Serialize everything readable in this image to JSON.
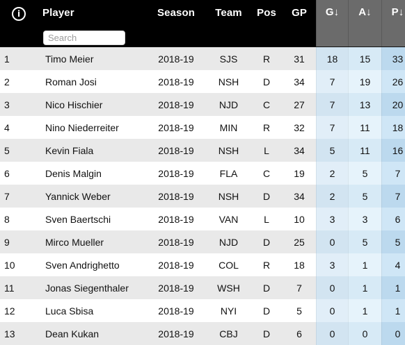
{
  "header": {
    "info_icon": "info-icon",
    "info_glyph": "i",
    "player": "Player",
    "search_placeholder": "Search",
    "season": "Season",
    "team": "Team",
    "pos": "Pos",
    "gp": "GP",
    "g": "G↓",
    "a": "A↓",
    "p": "P↓"
  },
  "rows": [
    {
      "rank": "1",
      "player": "Timo Meier",
      "season": "2018-19",
      "team": "SJS",
      "pos": "R",
      "gp": "31",
      "g": "18",
      "a": "15",
      "p": "33"
    },
    {
      "rank": "2",
      "player": "Roman Josi",
      "season": "2018-19",
      "team": "NSH",
      "pos": "D",
      "gp": "34",
      "g": "7",
      "a": "19",
      "p": "26"
    },
    {
      "rank": "3",
      "player": "Nico Hischier",
      "season": "2018-19",
      "team": "NJD",
      "pos": "C",
      "gp": "27",
      "g": "7",
      "a": "13",
      "p": "20"
    },
    {
      "rank": "4",
      "player": "Nino Niederreiter",
      "season": "2018-19",
      "team": "MIN",
      "pos": "R",
      "gp": "32",
      "g": "7",
      "a": "11",
      "p": "18"
    },
    {
      "rank": "5",
      "player": "Kevin Fiala",
      "season": "2018-19",
      "team": "NSH",
      "pos": "L",
      "gp": "34",
      "g": "5",
      "a": "11",
      "p": "16"
    },
    {
      "rank": "6",
      "player": "Denis Malgin",
      "season": "2018-19",
      "team": "FLA",
      "pos": "C",
      "gp": "19",
      "g": "2",
      "a": "5",
      "p": "7"
    },
    {
      "rank": "7",
      "player": "Yannick Weber",
      "season": "2018-19",
      "team": "NSH",
      "pos": "D",
      "gp": "34",
      "g": "2",
      "a": "5",
      "p": "7"
    },
    {
      "rank": "8",
      "player": "Sven Baertschi",
      "season": "2018-19",
      "team": "VAN",
      "pos": "L",
      "gp": "10",
      "g": "3",
      "a": "3",
      "p": "6"
    },
    {
      "rank": "9",
      "player": "Mirco Mueller",
      "season": "2018-19",
      "team": "NJD",
      "pos": "D",
      "gp": "25",
      "g": "0",
      "a": "5",
      "p": "5"
    },
    {
      "rank": "10",
      "player": "Sven Andrighetto",
      "season": "2018-19",
      "team": "COL",
      "pos": "R",
      "gp": "18",
      "g": "3",
      "a": "1",
      "p": "4"
    },
    {
      "rank": "11",
      "player": "Jonas Siegenthaler",
      "season": "2018-19",
      "team": "WSH",
      "pos": "D",
      "gp": "7",
      "g": "0",
      "a": "1",
      "p": "1"
    },
    {
      "rank": "12",
      "player": "Luca Sbisa",
      "season": "2018-19",
      "team": "NYI",
      "pos": "D",
      "gp": "5",
      "g": "0",
      "a": "1",
      "p": "1"
    },
    {
      "rank": "13",
      "player": "Dean Kukan",
      "season": "2018-19",
      "team": "CBJ",
      "pos": "D",
      "gp": "6",
      "g": "0",
      "a": "0",
      "p": "0"
    }
  ],
  "colors": {
    "header_bg": "#000000",
    "stat_header_bg": "#6b6b6b",
    "row_odd": "#e9e9e9",
    "row_even": "#ffffff"
  }
}
